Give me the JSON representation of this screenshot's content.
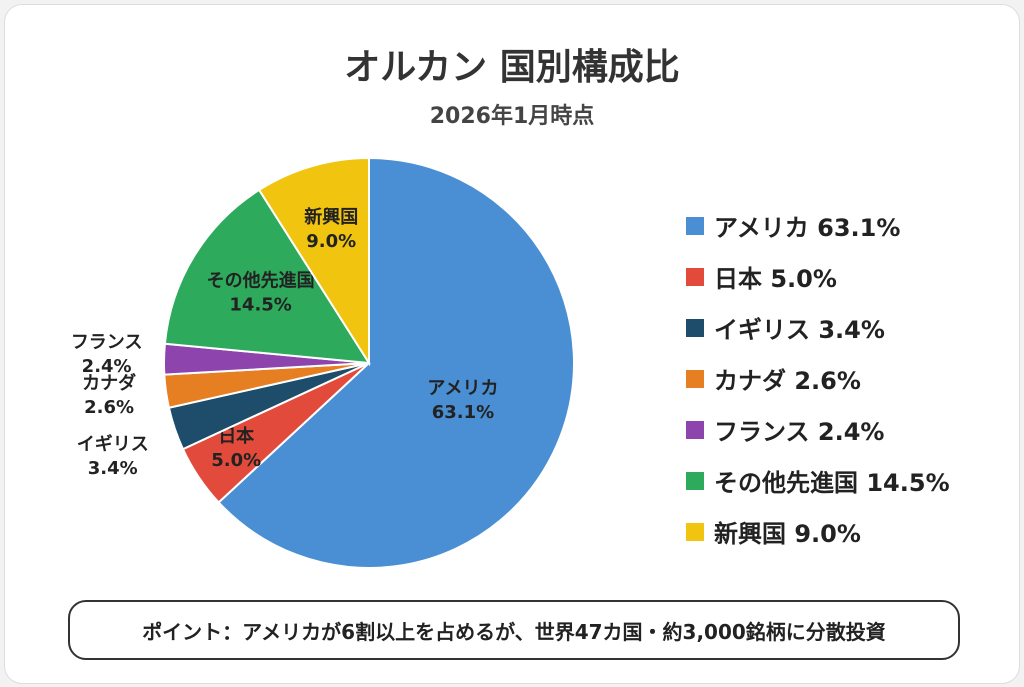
{
  "title": "オルカン 国別構成比",
  "subtitle": "2026年1月時点",
  "note": "ポイント：アメリカが6割以上を占めるが、世界47カ国・約3,000銘柄に分散投資",
  "chart_data": {
    "type": "pie",
    "title": "オルカン 国別構成比",
    "subtitle": "2026年1月時点",
    "legend": "right",
    "start": "12 o'clock, clockwise",
    "slices": [
      {
        "label": "アメリカ",
        "value": 63.1,
        "text": "63.1%",
        "color": "#4a8fd3"
      },
      {
        "label": "日本",
        "value": 5.0,
        "text": "5.0%",
        "color": "#e24b3b"
      },
      {
        "label": "イギリス",
        "value": 3.4,
        "text": "3.4%",
        "color": "#1d4d6b"
      },
      {
        "label": "カナダ",
        "value": 2.6,
        "text": "2.6%",
        "color": "#e67e22"
      },
      {
        "label": "フランス",
        "value": 2.4,
        "text": "2.4%",
        "color": "#8e44ad"
      },
      {
        "label": "その他先進国",
        "value": 14.5,
        "text": "14.5%",
        "color": "#2eaa5c"
      },
      {
        "label": "新興国",
        "value": 9.0,
        "text": "9.0%",
        "color": "#f1c40f"
      }
    ]
  }
}
